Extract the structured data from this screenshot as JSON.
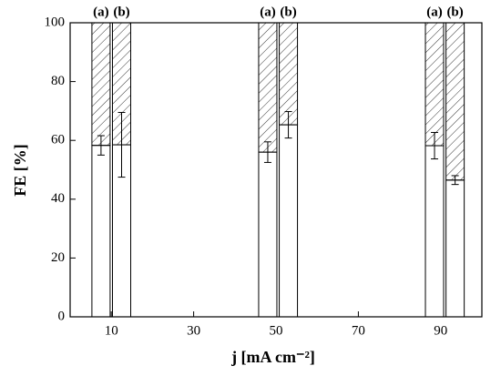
{
  "chart_data": {
    "type": "stacked-bar",
    "xlabel": "j [mA cm⁻²]",
    "ylabel": "FE [%]",
    "x": [
      7.5,
      12.5,
      48,
      53,
      88.5,
      93.5
    ],
    "labels": [
      "(a)",
      "(b)",
      "(a)",
      "(b)",
      "(a)",
      "(b)"
    ],
    "series": [
      {
        "color": "#ffffff",
        "values": [
          58.3,
          58.5,
          56,
          65.3,
          58.2,
          46.5
        ],
        "errors": [
          3.3,
          11,
          3.5,
          4.5,
          4.5,
          1.5
        ]
      },
      {
        "color": "#ffffff",
        "hatch": true,
        "values": [
          41.7,
          41.5,
          44,
          34.7,
          41.8,
          53.5
        ]
      }
    ],
    "xlim": [
      0,
      100
    ],
    "xticks": [
      10,
      30,
      50,
      70,
      90
    ],
    "ylim": [
      0,
      100
    ],
    "yticks": [
      0,
      20,
      40,
      60,
      80,
      100
    ]
  }
}
